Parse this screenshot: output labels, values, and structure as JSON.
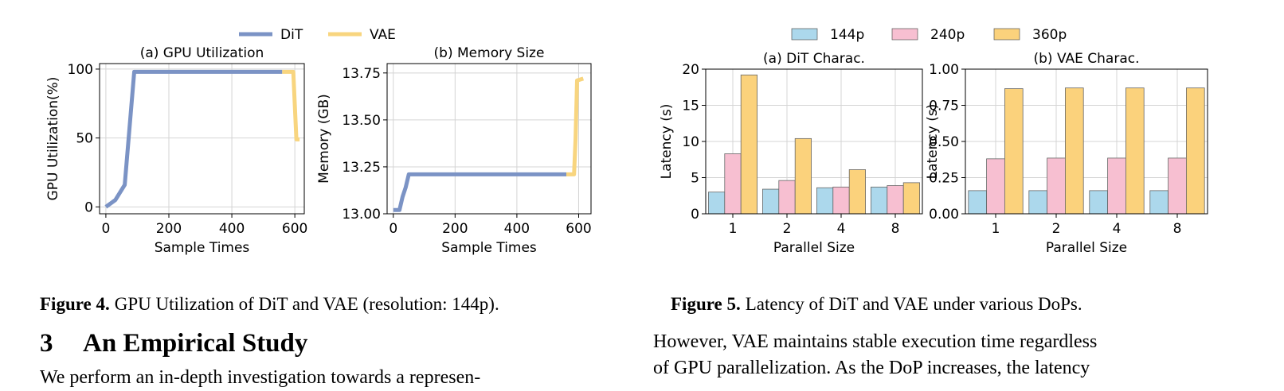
{
  "figure4": {
    "caption_label": "Figure 4.",
    "caption_text": "GPU Utilization of DiT and VAE (resolution: 144p)."
  },
  "figure5": {
    "caption_label": "Figure 5.",
    "caption_text": "Latency of DiT and VAE under various DoPs."
  },
  "section": {
    "number": "3",
    "title": "An Empirical Study"
  },
  "text": {
    "left_line": "We perform an in-depth investigation towards a represen-",
    "right_line1": "However, VAE maintains stable execution time regardless",
    "right_line2": "of GPU parallelization. As the DoP increases, the latency"
  },
  "legend4": [
    {
      "name": "DiT",
      "color": "#7b93c5"
    },
    {
      "name": "VAE",
      "color": "#f8d57f"
    }
  ],
  "legend5": [
    {
      "name": "144p",
      "color": "#acd8ec"
    },
    {
      "name": "240p",
      "color": "#f7bfd1"
    },
    {
      "name": "360p",
      "color": "#fbd27c"
    }
  ],
  "chart_data": [
    {
      "id": "gpu",
      "type": "line",
      "title": "(a) GPU Utilization",
      "xlabel": "Sample Times",
      "ylabel": "GPU Utilization(%)",
      "xlim": [
        -20,
        630
      ],
      "ylim": [
        -5,
        104
      ],
      "xticks": [
        0,
        200,
        400,
        600
      ],
      "yticks": [
        0,
        50,
        100
      ],
      "yticklabels": [
        "0",
        "50",
        "100"
      ],
      "grid": true,
      "series": [
        {
          "name": "DiT",
          "color": "#7b93c5",
          "x": [
            0,
            30,
            60,
            90,
            560
          ],
          "y": [
            0,
            5,
            16,
            98,
            98
          ]
        },
        {
          "name": "VAE",
          "color": "#f8d57f",
          "x": [
            560,
            595,
            605,
            615
          ],
          "y": [
            98,
            98,
            49,
            49
          ]
        }
      ]
    },
    {
      "id": "mem",
      "type": "line",
      "title": "(b) Memory Size",
      "xlabel": "Sample Times",
      "ylabel": "Memory (GB)",
      "xlim": [
        -20,
        640
      ],
      "ylim": [
        13.0,
        13.8
      ],
      "xticks": [
        0,
        200,
        400,
        600
      ],
      "yticks": [
        13.0,
        13.25,
        13.5,
        13.75
      ],
      "yticklabels": [
        "13.00",
        "13.25",
        "13.50",
        "13.75"
      ],
      "grid": true,
      "series": [
        {
          "name": "DiT",
          "color": "#7b93c5",
          "x": [
            0,
            20,
            30,
            40,
            50,
            560
          ],
          "y": [
            13.02,
            13.02,
            13.09,
            13.14,
            13.21,
            13.21
          ]
        },
        {
          "name": "VAE",
          "color": "#f8d57f",
          "x": [
            560,
            585,
            590,
            595,
            615
          ],
          "y": [
            13.21,
            13.21,
            13.4,
            13.71,
            13.72
          ]
        }
      ]
    },
    {
      "id": "dit",
      "type": "bar",
      "title": "(a) DiT Charac.",
      "xlabel": "Parallel Size",
      "ylabel": "Latency (s)",
      "categories": [
        "1",
        "2",
        "4",
        "8"
      ],
      "ylim": [
        0,
        20
      ],
      "yticks": [
        0,
        5,
        10,
        15,
        20
      ],
      "yticklabels": [
        "0",
        "5",
        "10",
        "15",
        "20"
      ],
      "grid": true,
      "series": [
        {
          "name": "144p",
          "color": "#acd8ec",
          "values": [
            3.0,
            3.4,
            3.6,
            3.7
          ]
        },
        {
          "name": "240p",
          "color": "#f7bfd1",
          "values": [
            8.3,
            4.6,
            3.7,
            3.9
          ]
        },
        {
          "name": "360p",
          "color": "#fbd27c",
          "values": [
            19.2,
            10.4,
            6.1,
            4.3
          ]
        }
      ]
    },
    {
      "id": "vae",
      "type": "bar",
      "title": "(b) VAE Charac.",
      "xlabel": "Parallel Size",
      "ylabel": "Latency (s)",
      "categories": [
        "1",
        "2",
        "4",
        "8"
      ],
      "ylim": [
        0,
        1.0
      ],
      "yticks": [
        0,
        0.25,
        0.5,
        0.75,
        1.0
      ],
      "yticklabels": [
        "0.00",
        "0.25",
        "0.50",
        "0.75",
        "1.00"
      ],
      "grid": true,
      "series": [
        {
          "name": "144p",
          "color": "#acd8ec",
          "values": [
            0.16,
            0.16,
            0.16,
            0.16
          ]
        },
        {
          "name": "240p",
          "color": "#f7bfd1",
          "values": [
            0.38,
            0.385,
            0.385,
            0.385
          ]
        },
        {
          "name": "360p",
          "color": "#fbd27c",
          "values": [
            0.865,
            0.87,
            0.87,
            0.87
          ]
        }
      ]
    }
  ]
}
